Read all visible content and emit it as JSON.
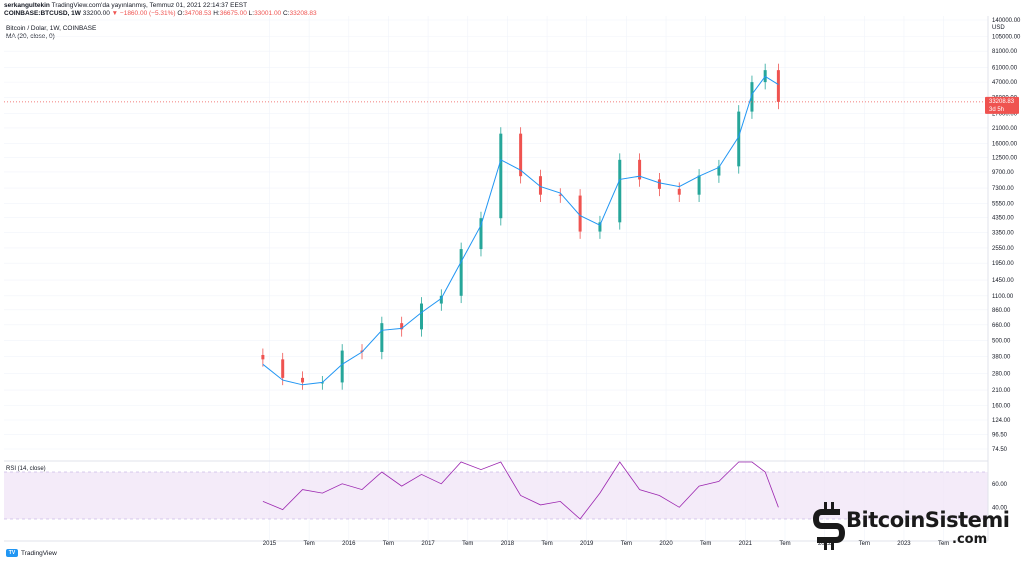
{
  "header": {
    "author": "serkangultekin",
    "published": "TradingView.com'da yayınlanmış, Temmuz 01, 2021 22:14:37 EEST",
    "symbol": "COINBASE:BTCUSD, 1W",
    "price": "33200.00",
    "change": "▼ −1860.00 (−5.31%)",
    "open_label": "O:",
    "open": "34708.53",
    "high_label": "H:",
    "high": "36675.00",
    "low_label": "L:",
    "low": "33001.00",
    "close_label": "C:",
    "close": "33208.83"
  },
  "legend": {
    "title": "Bitcoin / Dolar, 1W, COINBASE",
    "ma": "MA (20, close, 0)"
  },
  "price_tag": {
    "value": "33208.83",
    "countdown": "3d 5h"
  },
  "rsi_label": "RSI (14, close)",
  "footer": {
    "logo_text": "TradingView"
  },
  "brand": {
    "name": "BitcoinSistemi",
    "suffix": ".com"
  },
  "colors": {
    "up": "#26a69a",
    "down": "#ef5350",
    "ma": "#2196f3",
    "rsi": "#9c27b0",
    "rsi_band": "#efe3f7"
  },
  "chart_data": {
    "type": "line",
    "scale": "log",
    "currency": "USD",
    "y_ticks": [
      "140000.00",
      "105000.00",
      "81000.00",
      "61000.00",
      "47000.00",
      "36000.00",
      "27000.00",
      "21000.00",
      "16000.00",
      "12500.00",
      "9700.00",
      "7300.00",
      "5550.00",
      "4350.00",
      "3350.00",
      "2550.00",
      "1950.00",
      "1450.00",
      "1100.00",
      "860.00",
      "660.00",
      "500.00",
      "380.00",
      "280.00",
      "210.00",
      "160.00",
      "124.00",
      "96.50",
      "74.50"
    ],
    "x_ticks": [
      "2015",
      "Tem",
      "2016",
      "Tem",
      "2017",
      "Tem",
      "2018",
      "Tem",
      "2019",
      "Tem",
      "2020",
      "Tem",
      "2021",
      "Tem",
      "2022",
      "Tem",
      "2023",
      "Tem"
    ],
    "x": [
      "2014-12",
      "2015-03",
      "2015-06",
      "2015-09",
      "2015-12",
      "2016-03",
      "2016-06",
      "2016-09",
      "2016-12",
      "2017-03",
      "2017-06",
      "2017-09",
      "2017-12",
      "2018-03",
      "2018-06",
      "2018-09",
      "2018-12",
      "2019-03",
      "2019-06",
      "2019-09",
      "2019-12",
      "2020-03",
      "2020-06",
      "2020-09",
      "2020-12",
      "2021-02",
      "2021-04",
      "2021-06"
    ],
    "series": [
      {
        "values": [
          360,
          260,
          240,
          240,
          420,
          410,
          680,
          610,
          960,
          1100,
          2500,
          4300,
          19000,
          9000,
          6500,
          6400,
          3400,
          4000,
          12000,
          8500,
          7200,
          6500,
          9100,
          10700,
          28000,
          47000,
          58000,
          33200
        ]
      },
      {
        "values": [
          330,
          250,
          230,
          240,
          330,
          410,
          600,
          620,
          820,
          1050,
          2000,
          3800,
          12000,
          10000,
          7500,
          6700,
          4500,
          3800,
          8500,
          9000,
          8000,
          7500,
          9000,
          10500,
          18000,
          38000,
          52000,
          45000
        ]
      },
      {
        "values": [
          45,
          38,
          55,
          52,
          60,
          55,
          70,
          58,
          68,
          60,
          80,
          72,
          90,
          50,
          42,
          45,
          30,
          52,
          85,
          55,
          50,
          40,
          58,
          62,
          85,
          80,
          70,
          40
        ]
      }
    ]
  }
}
